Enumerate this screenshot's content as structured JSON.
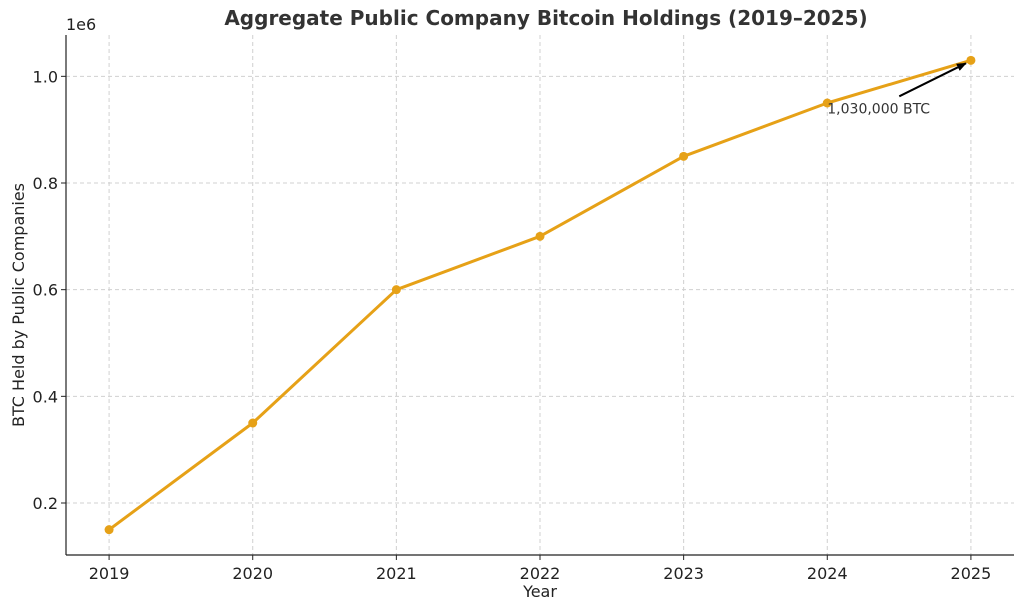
{
  "chart_data": {
    "type": "line",
    "title": "Aggregate Public Company Bitcoin Holdings (2019–2025)",
    "xlabel": "Year",
    "ylabel": "BTC Held by Public Companies",
    "y_offset_label": "1e6",
    "x": [
      2019,
      2020,
      2021,
      2022,
      2023,
      2024,
      2025
    ],
    "x_tick_labels": [
      "2019",
      "2020",
      "2021",
      "2022",
      "2023",
      "2024",
      "2025"
    ],
    "series": [
      {
        "values": [
          150000,
          350000,
          600000,
          700000,
          850000,
          950000,
          1030000
        ],
        "color": "#E6A117"
      }
    ],
    "y_ticks": [
      200000,
      400000,
      600000,
      800000,
      1000000
    ],
    "y_tick_labels": [
      "0.2",
      "0.4",
      "0.6",
      "0.8",
      "1.0"
    ],
    "ylim": [
      102500,
      1077500
    ],
    "xlim": [
      2018.7,
      2025.3
    ],
    "grid": true,
    "annotations": [
      {
        "text": "1,030,000 BTC",
        "x": 2025,
        "y": 1030000,
        "text_x": 2024,
        "text_y": 940000
      }
    ]
  }
}
